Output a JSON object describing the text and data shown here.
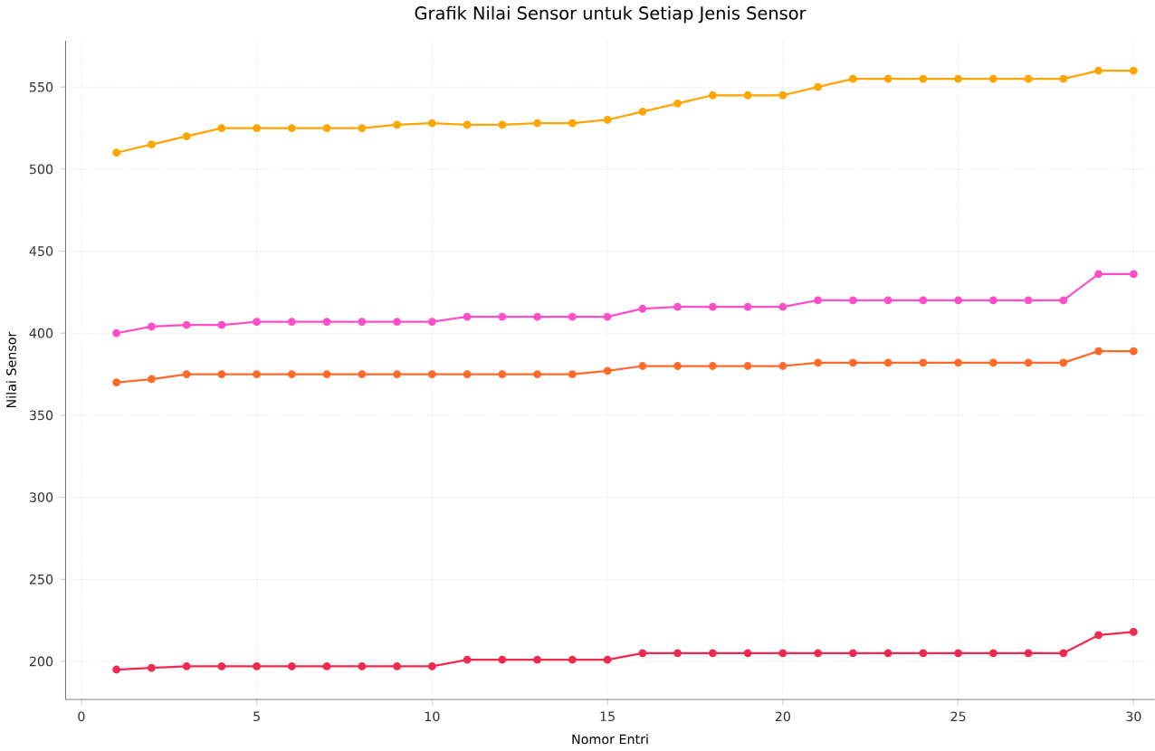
{
  "chart_data": {
    "type": "line",
    "title": "Grafik Nilai Sensor untuk Setiap Jenis Sensor",
    "xlabel": "Nomor Entri",
    "ylabel": "Nilai Sensor",
    "x": [
      1,
      2,
      3,
      4,
      5,
      6,
      7,
      8,
      9,
      10,
      11,
      12,
      13,
      14,
      15,
      16,
      17,
      18,
      19,
      20,
      21,
      22,
      23,
      24,
      25,
      26,
      27,
      28,
      29,
      30
    ],
    "series": [
      {
        "color": "#ffa500",
        "values": [
          510,
          515,
          520,
          525,
          525,
          525,
          525,
          525,
          527,
          528,
          527,
          527,
          528,
          528,
          530,
          535,
          540,
          545,
          545,
          545,
          550,
          555,
          555,
          555,
          555,
          555,
          555,
          555,
          560,
          560
        ]
      },
      {
        "color": "#ff6a2a",
        "values": [
          370,
          372,
          375,
          375,
          375,
          375,
          375,
          375,
          375,
          375,
          375,
          375,
          375,
          375,
          377,
          380,
          380,
          380,
          380,
          380,
          382,
          382,
          382,
          382,
          382,
          382,
          382,
          382,
          389,
          389
        ]
      },
      {
        "color": "#f0294f",
        "values": [
          195,
          196,
          197,
          197,
          197,
          197,
          197,
          197,
          197,
          197,
          201,
          201,
          201,
          201,
          201,
          205,
          205,
          205,
          205,
          205,
          205,
          205,
          205,
          205,
          205,
          205,
          205,
          205,
          216,
          218
        ]
      },
      {
        "color": "#ff4fc8",
        "values": [
          400,
          404,
          405,
          405,
          407,
          407,
          407,
          407,
          407,
          407,
          410,
          410,
          410,
          410,
          410,
          415,
          416,
          416,
          416,
          416,
          420,
          420,
          420,
          420,
          420,
          420,
          420,
          420,
          436,
          436
        ]
      }
    ],
    "xlim": [
      -0.45,
      30.6
    ],
    "ylim": [
      176.75,
      578.25
    ],
    "xticks": [
      0,
      5,
      10,
      15,
      20,
      25,
      30
    ],
    "yticks": [
      200,
      250,
      300,
      350,
      400,
      450,
      500,
      550
    ],
    "grid": true,
    "marker": "circle",
    "line_style": "solid"
  }
}
